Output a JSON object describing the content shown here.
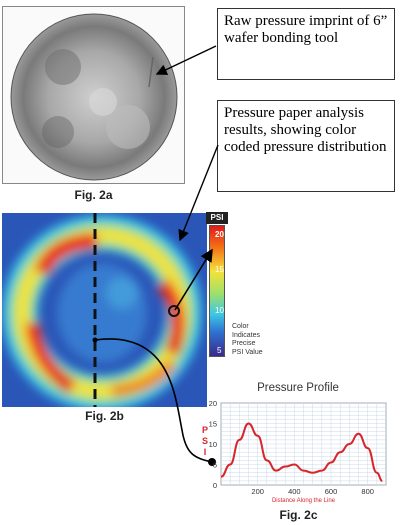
{
  "callouts": {
    "raw": "Raw pressure imprint of 6” wafer bonding tool",
    "analysis": "Pressure paper analysis results, showing color coded pressure distribution"
  },
  "figures": {
    "a": "Fig. 2a",
    "b": "Fig. 2b",
    "c": "Fig. 2c"
  },
  "scale": {
    "unit": "PSI",
    "ticks": [
      "20",
      "15",
      "10",
      "5"
    ],
    "note": [
      "Color",
      "Indicates",
      "Precise",
      "PSI Value"
    ]
  },
  "chart_data": {
    "type": "line",
    "title": "Pressure Profile",
    "ylabel": "PSI",
    "xlabel": "Distance Along the Line",
    "xlim": [
      0,
      900
    ],
    "ylim": [
      0,
      20
    ],
    "xticks": [
      200,
      400,
      600,
      800
    ],
    "yticks": [
      0,
      5,
      10,
      15,
      20
    ],
    "grid": true,
    "series": [
      {
        "color": "#d9252a",
        "x": [
          0,
          50,
          100,
          150,
          200,
          250,
          300,
          350,
          400,
          450,
          500,
          550,
          600,
          650,
          700,
          750,
          800,
          850,
          880
        ],
        "y": [
          2,
          5,
          11,
          15,
          12,
          6,
          3.5,
          4.5,
          5,
          3.5,
          3,
          3.5,
          5.5,
          8,
          10,
          12.5,
          9,
          3,
          1
        ]
      }
    ]
  }
}
